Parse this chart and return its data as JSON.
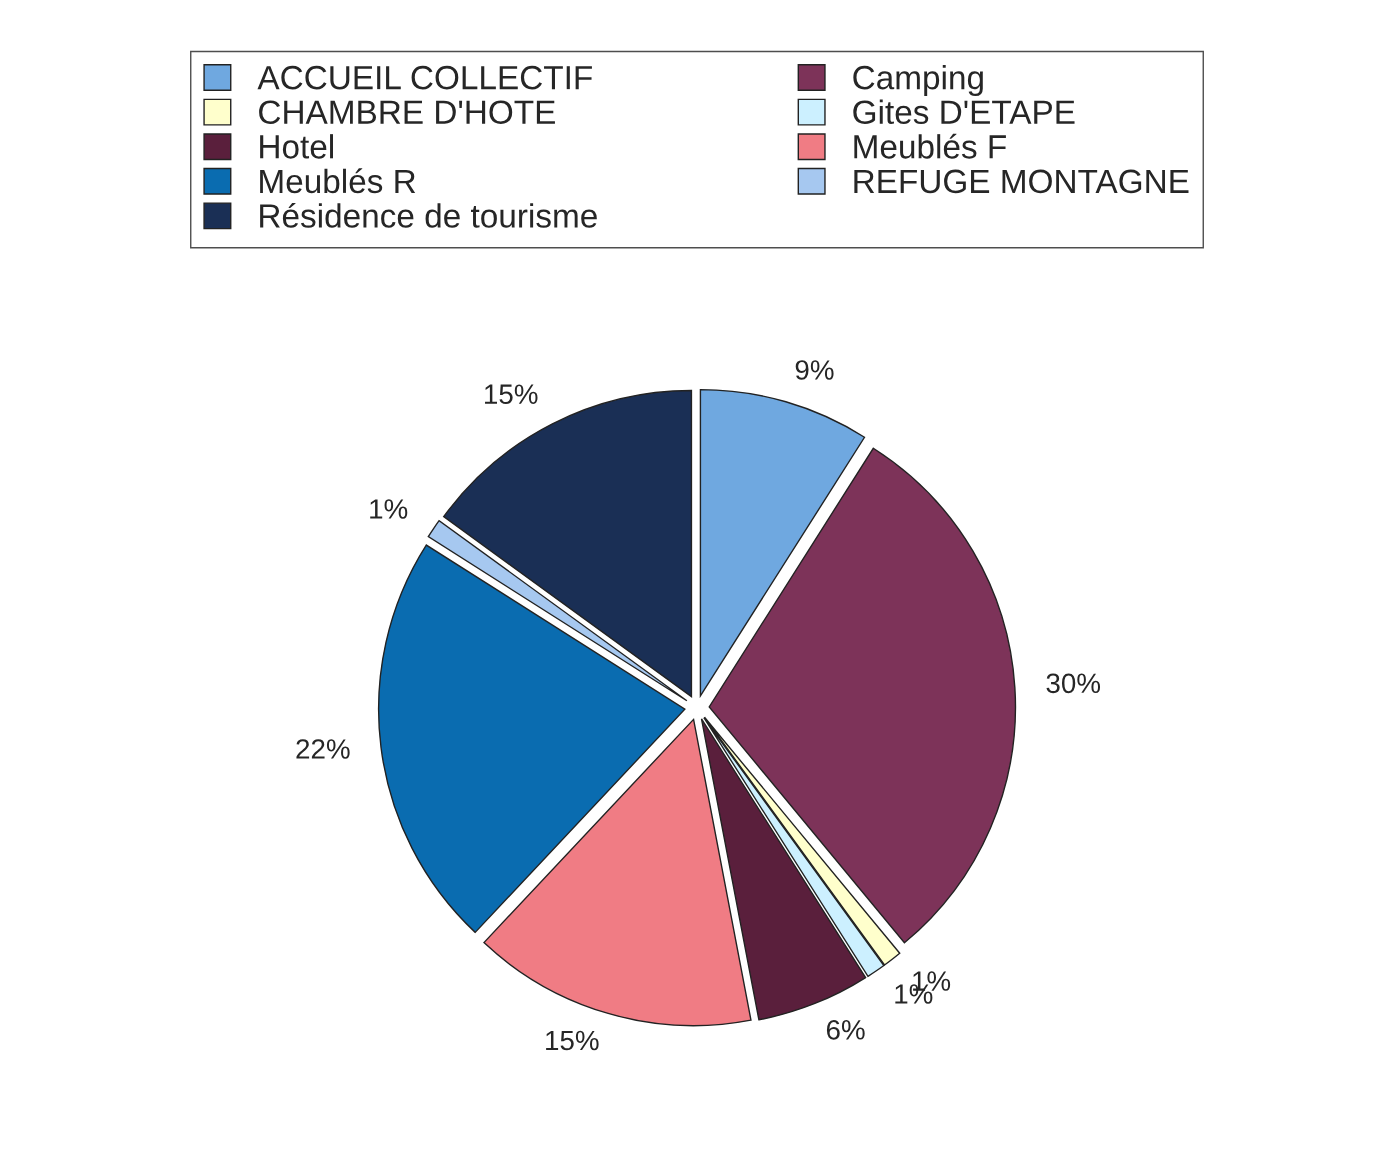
{
  "chart_data": {
    "type": "pie",
    "categories": [
      "ACCUEIL COLLECTIF",
      "Camping",
      "CHAMBRE D'HOTE",
      "Gites D'ETAPE",
      "Hotel",
      "Meublés F",
      "Meublés R",
      "REFUGE MONTAGNE",
      "Résidence de tourisme"
    ],
    "values": [
      9,
      30,
      1,
      1,
      6,
      15,
      22,
      1,
      15
    ],
    "value_labels": [
      "9%",
      "30%",
      "1%",
      "1%",
      "6%",
      "15%",
      "22%",
      "1%",
      "15%"
    ],
    "colors": [
      "#6fa8e0",
      "#7d3359",
      "#ffffcc",
      "#ccf0ff",
      "#5a1f3c",
      "#f07c84",
      "#0a6cb0",
      "#a6c8f0",
      "#1a2f55"
    ],
    "legend": "top"
  }
}
